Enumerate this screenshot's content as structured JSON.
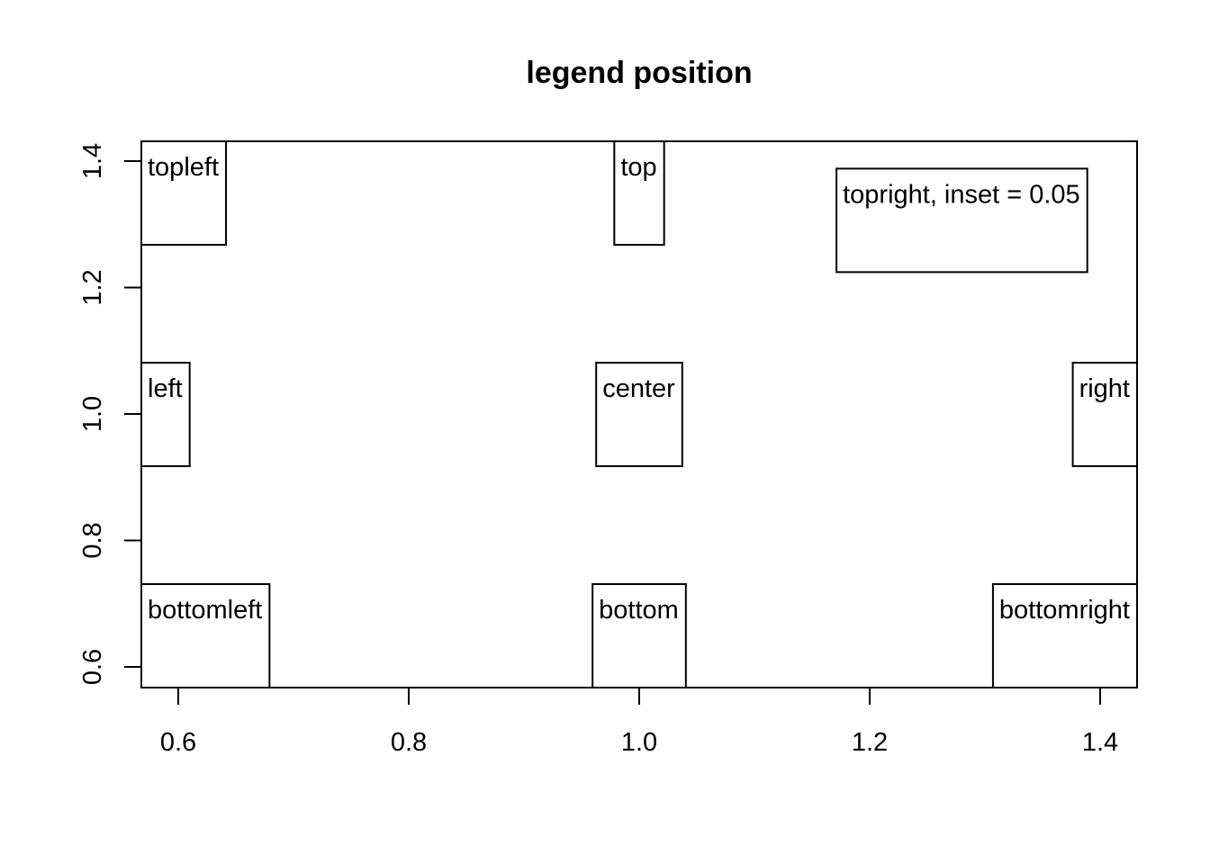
{
  "chart_data": {
    "type": "legend-demo",
    "title": "legend position",
    "xlabel": "",
    "ylabel": "",
    "xlim": [
      0.6,
      1.4
    ],
    "ylim": [
      0.6,
      1.4
    ],
    "x_ticks": [
      {
        "value": 0.6,
        "label": "0.6"
      },
      {
        "value": 0.8,
        "label": "0.8"
      },
      {
        "value": 1.0,
        "label": "1.0"
      },
      {
        "value": 1.2,
        "label": "1.2"
      },
      {
        "value": 1.4,
        "label": "1.4"
      }
    ],
    "y_ticks": [
      {
        "value": 0.6,
        "label": "0.6"
      },
      {
        "value": 0.8,
        "label": "0.8"
      },
      {
        "value": 1.0,
        "label": "1.0"
      },
      {
        "value": 1.2,
        "label": "1.2"
      },
      {
        "value": 1.4,
        "label": "1.4"
      }
    ],
    "grid": false,
    "legends": [
      {
        "position": "topleft",
        "label": "topleft"
      },
      {
        "position": "top",
        "label": "top"
      },
      {
        "position": "topright",
        "inset": 0.05,
        "label": "topright, inset = 0.05"
      },
      {
        "position": "left",
        "label": "left"
      },
      {
        "position": "center",
        "label": "center"
      },
      {
        "position": "right",
        "label": "right"
      },
      {
        "position": "bottomleft",
        "label": "bottomleft"
      },
      {
        "position": "bottom",
        "label": "bottom"
      },
      {
        "position": "bottomright",
        "label": "bottomright"
      }
    ]
  }
}
